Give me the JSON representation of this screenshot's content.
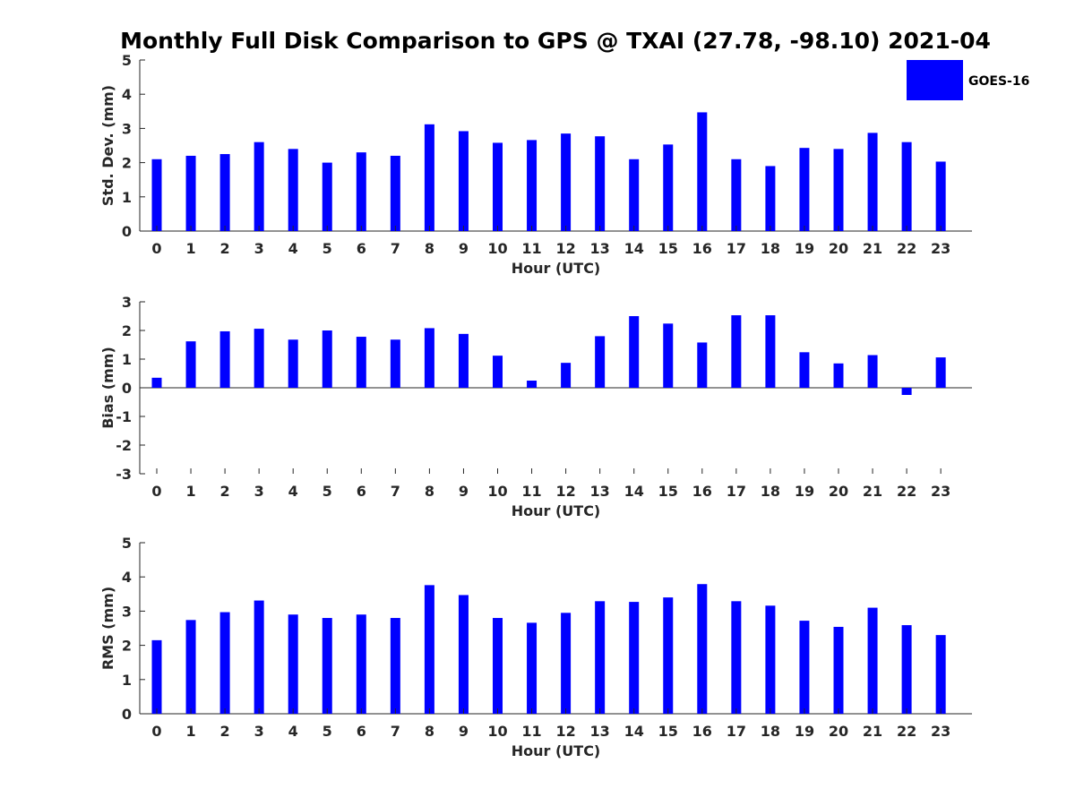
{
  "chart_data": {
    "title": "Monthly Full Disk Comparison to GPS @ TXAI (27.78, -98.10) 2021-04",
    "legend": {
      "label": "GOES-16",
      "color": "#0000ff",
      "placement": "top-right"
    },
    "panels": [
      {
        "type": "bar",
        "name": "std-dev",
        "xlabel": "Hour (UTC)",
        "ylabel": "Std. Dev. (mm)",
        "ylim": [
          0,
          5
        ],
        "yticks": [
          0,
          1,
          2,
          3,
          4,
          5
        ],
        "categories": [
          "0",
          "1",
          "2",
          "3",
          "4",
          "5",
          "6",
          "7",
          "8",
          "9",
          "10",
          "11",
          "12",
          "13",
          "14",
          "15",
          "16",
          "17",
          "18",
          "19",
          "20",
          "21",
          "22",
          "23"
        ],
        "series": [
          {
            "name": "GOES-16",
            "color": "#0000ff",
            "values": [
              2.1,
              2.2,
              2.25,
              2.6,
              2.4,
              2.0,
              2.3,
              2.2,
              3.12,
              2.92,
              2.58,
              2.66,
              2.85,
              2.77,
              2.1,
              2.53,
              3.47,
              2.1,
              1.9,
              2.43,
              2.4,
              2.87,
              2.6,
              2.03
            ]
          }
        ]
      },
      {
        "type": "bar",
        "name": "bias",
        "xlabel": "Hour (UTC)",
        "ylabel": "Bias (mm)",
        "ylim": [
          -3,
          3
        ],
        "yticks": [
          -3,
          -2,
          -1,
          0,
          1,
          2,
          3
        ],
        "categories": [
          "0",
          "1",
          "2",
          "3",
          "4",
          "5",
          "6",
          "7",
          "8",
          "9",
          "10",
          "11",
          "12",
          "13",
          "14",
          "15",
          "16",
          "17",
          "18",
          "19",
          "20",
          "21",
          "22",
          "23"
        ],
        "series": [
          {
            "name": "GOES-16",
            "color": "#0000ff",
            "values": [
              0.35,
              1.62,
              1.97,
              2.06,
              1.68,
              2.0,
              1.78,
              1.68,
              2.08,
              1.88,
              1.12,
              0.25,
              0.87,
              1.8,
              2.5,
              2.24,
              1.58,
              2.53,
              2.53,
              1.24,
              0.85,
              1.14,
              -0.25,
              1.06
            ]
          }
        ]
      },
      {
        "type": "bar",
        "name": "rms",
        "xlabel": "Hour (UTC)",
        "ylabel": "RMS (mm)",
        "ylim": [
          0,
          5
        ],
        "yticks": [
          0,
          1,
          2,
          3,
          4,
          5
        ],
        "categories": [
          "0",
          "1",
          "2",
          "3",
          "4",
          "5",
          "6",
          "7",
          "8",
          "9",
          "10",
          "11",
          "12",
          "13",
          "14",
          "15",
          "16",
          "17",
          "18",
          "19",
          "20",
          "21",
          "22",
          "23"
        ],
        "series": [
          {
            "name": "GOES-16",
            "color": "#0000ff",
            "values": [
              2.15,
              2.74,
              2.97,
              3.31,
              2.9,
              2.8,
              2.9,
              2.8,
              3.76,
              3.47,
              2.8,
              2.66,
              2.95,
              3.29,
              3.27,
              3.4,
              3.79,
              3.29,
              3.16,
              2.72,
              2.54,
              3.1,
              2.59,
              2.3
            ]
          }
        ]
      }
    ]
  }
}
